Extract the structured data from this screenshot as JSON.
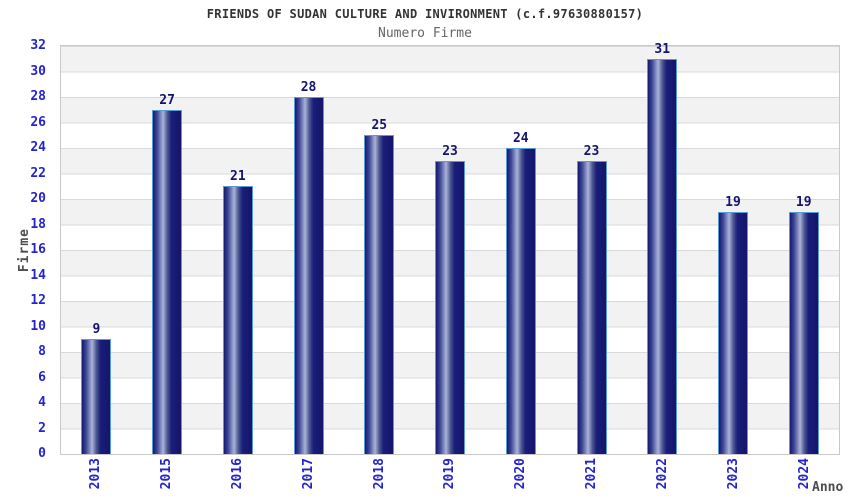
{
  "chart_data": {
    "type": "bar",
    "title": "FRIENDS OF SUDAN CULTURE AND INVIRONMENT (c.f.97630880157)",
    "subtitle": "Numero Firme",
    "xlabel": "Anno",
    "ylabel": "Firme",
    "categories": [
      "2013",
      "2015",
      "2016",
      "2017",
      "2018",
      "2019",
      "2020",
      "2021",
      "2022",
      "2023",
      "2024"
    ],
    "values": [
      9,
      27,
      21,
      28,
      25,
      23,
      24,
      23,
      31,
      19,
      19
    ],
    "ylim": [
      0,
      32
    ],
    "ytick_step": 2,
    "grid": "horizontal-bands-alternating",
    "legend_position": "none",
    "bar_style": "cylinder-gradient",
    "x_tick_rotation": 90
  },
  "colors": {
    "tick_blue": "#2424cc",
    "value_navy": "#14146e",
    "bar_border": "#5b9bd5",
    "bar_gradient_stops": [
      "#161a6e 0%",
      "#3a4494 14%",
      "#aab3d8 36%",
      "#4a548e 52%",
      "#1a1d7a 66%",
      "#14166a 100%"
    ],
    "band_gray": "#f2f2f2",
    "grid_line": "#d9d9d9",
    "plot_border": "#c9c9c9",
    "title_color": "#333333",
    "subtitle_color": "#666666",
    "axis_title_color": "#4d4d4d",
    "background": "#ffffff"
  }
}
